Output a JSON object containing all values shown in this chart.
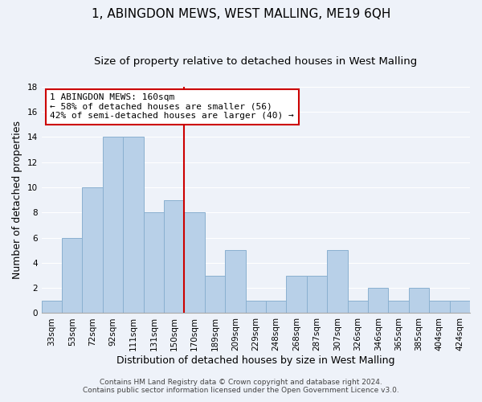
{
  "title": "1, ABINGDON MEWS, WEST MALLING, ME19 6QH",
  "subtitle": "Size of property relative to detached houses in West Malling",
  "xlabel": "Distribution of detached houses by size in West Malling",
  "ylabel": "Number of detached properties",
  "bar_labels": [
    "33sqm",
    "53sqm",
    "72sqm",
    "92sqm",
    "111sqm",
    "131sqm",
    "150sqm",
    "170sqm",
    "189sqm",
    "209sqm",
    "229sqm",
    "248sqm",
    "268sqm",
    "287sqm",
    "307sqm",
    "326sqm",
    "346sqm",
    "365sqm",
    "385sqm",
    "404sqm",
    "424sqm"
  ],
  "bar_values": [
    1,
    6,
    10,
    14,
    14,
    8,
    9,
    8,
    3,
    5,
    1,
    1,
    3,
    3,
    5,
    1,
    2,
    1,
    2,
    1,
    1
  ],
  "bar_color": "#b8d0e8",
  "bar_edgecolor": "#8ab0d0",
  "reference_line_color": "#cc0000",
  "annotation_title": "1 ABINGDON MEWS: 160sqm",
  "annotation_line1": "← 58% of detached houses are smaller (56)",
  "annotation_line2": "42% of semi-detached houses are larger (40) →",
  "annotation_box_facecolor": "#ffffff",
  "annotation_box_edgecolor": "#cc0000",
  "ylim": [
    0,
    18
  ],
  "yticks": [
    0,
    2,
    4,
    6,
    8,
    10,
    12,
    14,
    16,
    18
  ],
  "footer_line1": "Contains HM Land Registry data © Crown copyright and database right 2024.",
  "footer_line2": "Contains public sector information licensed under the Open Government Licence v3.0.",
  "background_color": "#eef2f9",
  "plot_bg_color": "#eef2f9",
  "grid_color": "#ffffff",
  "title_fontsize": 11,
  "subtitle_fontsize": 9.5,
  "axis_label_fontsize": 9,
  "tick_fontsize": 7.5,
  "footer_fontsize": 6.5,
  "annotation_fontsize": 8
}
